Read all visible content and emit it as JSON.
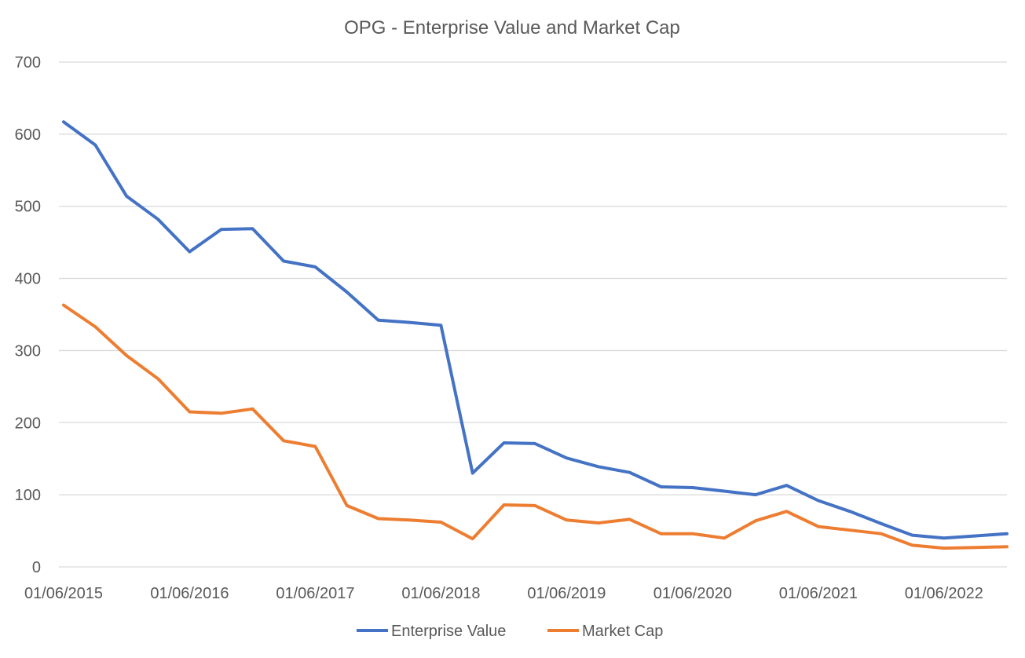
{
  "chart_data": {
    "type": "line",
    "title": "OPG - Enterprise Value and Market Cap",
    "xlabel": "",
    "ylabel": "",
    "ylim": [
      0,
      700
    ],
    "yticks": [
      0,
      100,
      200,
      300,
      400,
      500,
      600,
      700
    ],
    "x_tick_labels": [
      "01/06/2015",
      "01/06/2016",
      "01/06/2017",
      "01/06/2018",
      "01/06/2019",
      "01/06/2020",
      "01/06/2021",
      "01/06/2022"
    ],
    "x": [
      "2015-06-01",
      "2015-09-01",
      "2015-12-01",
      "2016-03-01",
      "2016-06-01",
      "2016-09-01",
      "2016-12-01",
      "2017-03-01",
      "2017-06-01",
      "2017-09-01",
      "2017-12-01",
      "2018-03-01",
      "2018-06-01",
      "2018-09-01",
      "2018-12-01",
      "2019-03-01",
      "2019-06-01",
      "2019-09-01",
      "2019-12-01",
      "2020-03-01",
      "2020-06-01",
      "2020-09-01",
      "2020-12-01",
      "2021-03-01",
      "2021-06-01",
      "2021-09-01",
      "2021-12-01",
      "2022-03-01",
      "2022-06-01",
      "2022-09-01",
      "2022-12-01"
    ],
    "series": [
      {
        "name": "Enterprise Value",
        "color": "#4472c4",
        "values": [
          617,
          585,
          514,
          482,
          437,
          468,
          469,
          424,
          416,
          381,
          342,
          339,
          335,
          130,
          172,
          171,
          151,
          139,
          131,
          111,
          110,
          105,
          100,
          113,
          92,
          77,
          60,
          44,
          40,
          43,
          46
        ]
      },
      {
        "name": "Market Cap",
        "color": "#ed7d31",
        "values": [
          363,
          333,
          293,
          261,
          215,
          213,
          219,
          175,
          167,
          85,
          67,
          65,
          62,
          39,
          86,
          85,
          65,
          61,
          66,
          46,
          46,
          40,
          64,
          77,
          56,
          51,
          46,
          30,
          26,
          27,
          28
        ]
      }
    ],
    "grid": true,
    "legend": "bottom"
  }
}
